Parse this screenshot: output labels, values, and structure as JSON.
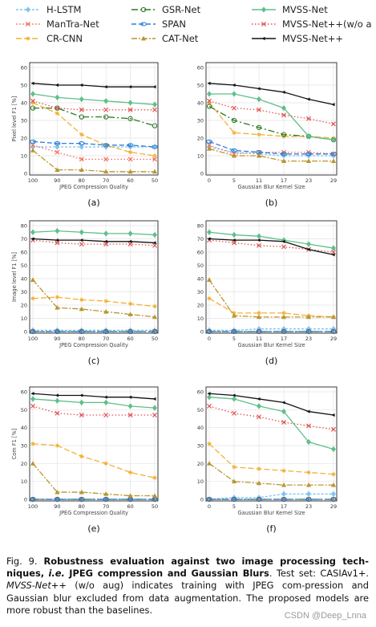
{
  "legend": [
    {
      "name": "H-LSTM",
      "color": "#7fc4ef",
      "dash": "3,2",
      "marker": "diamond"
    },
    {
      "name": "ManTra-Net",
      "color": "#f4695a",
      "dash": "1.5,2.5",
      "marker": "x"
    },
    {
      "name": "CR-CNN",
      "color": "#f2b134",
      "dash": "7,3",
      "marker": "star"
    },
    {
      "name": "GSR-Net",
      "color": "#2d7a22",
      "dash": "8,3,2,3",
      "marker": "circle"
    },
    {
      "name": "SPAN",
      "color": "#2e7fd8",
      "dash": "6,3",
      "marker": "ellipse"
    },
    {
      "name": "CAT-Net",
      "color": "#b89630",
      "dash": "7,2,2,2",
      "marker": "triangle"
    },
    {
      "name": "MVSS-Net",
      "color": "#5fbf8a",
      "dash": "",
      "marker": "diamond"
    },
    {
      "name": "MVSS-Net++(w/o aug)",
      "color": "#e05050",
      "dash": "1.5,2.5",
      "marker": "x"
    },
    {
      "name": "MVSS-Net++",
      "color": "#111111",
      "dash": "",
      "marker": "arrow"
    }
  ],
  "chart_data": [
    {
      "id": "a",
      "type": "line",
      "panel_label": "(a)",
      "xlabel": "JPEG Compression Quality",
      "ylabel": "Pixel level F1 [%]",
      "x": [
        "100",
        "90",
        "80",
        "70",
        "60",
        "50"
      ],
      "ylim": [
        0,
        60
      ],
      "yticks": [
        0,
        10,
        20,
        30,
        40,
        50,
        60
      ],
      "series": [
        {
          "name": "H-LSTM",
          "values": [
            15,
            15,
            15,
            15,
            15,
            15
          ]
        },
        {
          "name": "ManTra-Net",
          "values": [
            16,
            12,
            8,
            8,
            8,
            8
          ]
        },
        {
          "name": "CR-CNN",
          "values": [
            40,
            34,
            22,
            16,
            12,
            10
          ]
        },
        {
          "name": "GSR-Net",
          "values": [
            37,
            37,
            32,
            32,
            31,
            27
          ]
        },
        {
          "name": "SPAN",
          "values": [
            18,
            17,
            17,
            16,
            16,
            15
          ]
        },
        {
          "name": "CAT-Net",
          "values": [
            13,
            2,
            2,
            1,
            1,
            1
          ]
        },
        {
          "name": "MVSS-Net",
          "values": [
            45,
            43,
            42,
            41,
            40,
            39
          ]
        },
        {
          "name": "MVSS-Net++(w/o aug)",
          "values": [
            41,
            37,
            36,
            36,
            36,
            36
          ]
        },
        {
          "name": "MVSS-Net++",
          "values": [
            51,
            50,
            50,
            49,
            49,
            49
          ]
        }
      ]
    },
    {
      "id": "b",
      "type": "line",
      "panel_label": "(b)",
      "xlabel": "Gaussian Blur Kernel Size",
      "ylabel": "",
      "x": [
        "0",
        "5",
        "11",
        "17",
        "23",
        "29"
      ],
      "ylim": [
        0,
        60
      ],
      "yticks": [
        0,
        10,
        20,
        30,
        40,
        50,
        60
      ],
      "series": [
        {
          "name": "H-LSTM",
          "values": [
            15,
            12,
            11,
            10,
            10,
            10
          ]
        },
        {
          "name": "ManTra-Net",
          "values": [
            16,
            11,
            12,
            12,
            12,
            11
          ]
        },
        {
          "name": "CR-CNN",
          "values": [
            40,
            23,
            22,
            21,
            21,
            20
          ]
        },
        {
          "name": "GSR-Net",
          "values": [
            38,
            30,
            26,
            22,
            21,
            19
          ]
        },
        {
          "name": "SPAN",
          "values": [
            18,
            13,
            12,
            11,
            11,
            11
          ]
        },
        {
          "name": "CAT-Net",
          "values": [
            14,
            10,
            10,
            7,
            7,
            7
          ]
        },
        {
          "name": "MVSS-Net",
          "values": [
            45,
            45,
            42,
            37,
            21,
            19
          ]
        },
        {
          "name": "MVSS-Net++(w/o aug)",
          "values": [
            41,
            37,
            36,
            33,
            31,
            28
          ]
        },
        {
          "name": "MVSS-Net++",
          "values": [
            51,
            50,
            48,
            46,
            42,
            39
          ]
        }
      ]
    },
    {
      "id": "c",
      "type": "line",
      "panel_label": "(c)",
      "xlabel": "JPEG Compression Quality",
      "ylabel": "Image level F1 [%]",
      "x": [
        "100",
        "90",
        "80",
        "70",
        "60",
        "50"
      ],
      "ylim": [
        0,
        80
      ],
      "yticks": [
        0,
        10,
        20,
        30,
        40,
        50,
        60,
        70,
        80
      ],
      "series": [
        {
          "name": "H-LSTM",
          "values": [
            1,
            1,
            1,
            1,
            1,
            1
          ]
        },
        {
          "name": "ManTra-Net",
          "values": [
            0,
            0,
            0,
            0,
            0,
            0
          ]
        },
        {
          "name": "CR-CNN",
          "values": [
            25,
            26,
            24,
            23,
            21,
            19
          ]
        },
        {
          "name": "GSR-Net",
          "values": [
            0,
            0,
            0,
            0,
            0,
            0
          ]
        },
        {
          "name": "SPAN",
          "values": [
            0,
            0,
            0,
            0,
            0,
            0
          ]
        },
        {
          "name": "CAT-Net",
          "values": [
            39,
            18,
            17,
            15,
            13,
            11
          ]
        },
        {
          "name": "MVSS-Net",
          "values": [
            75,
            76,
            75,
            74,
            74,
            73
          ]
        },
        {
          "name": "MVSS-Net++(w/o aug)",
          "values": [
            69,
            67,
            66,
            66,
            66,
            65
          ]
        },
        {
          "name": "MVSS-Net++",
          "values": [
            70,
            69,
            69,
            68,
            68,
            67
          ]
        }
      ]
    },
    {
      "id": "d",
      "type": "line",
      "panel_label": "(d)",
      "xlabel": "Gaussian Blur Kernel Size",
      "ylabel": "",
      "x": [
        "0",
        "5",
        "11",
        "17",
        "23",
        "29"
      ],
      "ylim": [
        0,
        80
      ],
      "yticks": [
        0,
        10,
        20,
        30,
        40,
        50,
        60,
        70,
        80
      ],
      "series": [
        {
          "name": "H-LSTM",
          "values": [
            1,
            1,
            2,
            2,
            2,
            2
          ]
        },
        {
          "name": "ManTra-Net",
          "values": [
            0,
            0,
            0,
            0,
            0,
            0
          ]
        },
        {
          "name": "CR-CNN",
          "values": [
            25,
            14,
            14,
            14,
            12,
            11
          ]
        },
        {
          "name": "GSR-Net",
          "values": [
            0,
            0,
            0,
            0,
            0,
            0
          ]
        },
        {
          "name": "SPAN",
          "values": [
            0,
            0,
            0,
            0,
            0,
            0
          ]
        },
        {
          "name": "CAT-Net",
          "values": [
            39,
            12,
            11,
            11,
            11,
            11
          ]
        },
        {
          "name": "MVSS-Net",
          "values": [
            75,
            73,
            72,
            69,
            66,
            63
          ]
        },
        {
          "name": "MVSS-Net++(w/o aug)",
          "values": [
            69,
            67,
            65,
            64,
            62,
            60
          ]
        },
        {
          "name": "MVSS-Net++",
          "values": [
            70,
            69,
            69,
            68,
            62,
            58
          ]
        }
      ]
    },
    {
      "id": "e",
      "type": "line",
      "panel_label": "(e)",
      "xlabel": "JPEG Compression Quality",
      "ylabel": "Com F1 [%]",
      "x": [
        "100",
        "90",
        "80",
        "70",
        "60",
        "50"
      ],
      "ylim": [
        0,
        60
      ],
      "yticks": [
        0,
        10,
        20,
        30,
        40,
        50,
        60
      ],
      "series": [
        {
          "name": "H-LSTM",
          "values": [
            0,
            0,
            0,
            0,
            0,
            0
          ]
        },
        {
          "name": "ManTra-Net",
          "values": [
            0,
            0,
            0,
            0,
            0,
            0
          ]
        },
        {
          "name": "CR-CNN",
          "values": [
            31,
            30,
            24,
            20,
            15,
            12
          ]
        },
        {
          "name": "GSR-Net",
          "values": [
            0,
            0,
            0,
            0,
            0,
            0
          ]
        },
        {
          "name": "SPAN",
          "values": [
            0,
            0,
            0,
            0,
            0,
            0
          ]
        },
        {
          "name": "CAT-Net",
          "values": [
            20,
            4,
            4,
            3,
            2,
            2
          ]
        },
        {
          "name": "MVSS-Net",
          "values": [
            56,
            55,
            54,
            54,
            52,
            51
          ]
        },
        {
          "name": "MVSS-Net++(w/o aug)",
          "values": [
            52,
            48,
            47,
            47,
            47,
            47
          ]
        },
        {
          "name": "MVSS-Net++",
          "values": [
            59,
            58,
            58,
            57,
            57,
            56
          ]
        }
      ]
    },
    {
      "id": "f",
      "type": "line",
      "panel_label": "(f)",
      "xlabel": "Gaussian Blur Kernel Size",
      "ylabel": "",
      "x": [
        "0",
        "5",
        "11",
        "17",
        "23",
        "29"
      ],
      "ylim": [
        0,
        60
      ],
      "yticks": [
        0,
        10,
        20,
        30,
        40,
        50,
        60
      ],
      "series": [
        {
          "name": "H-LSTM",
          "values": [
            0,
            1,
            1,
            3,
            3,
            3
          ]
        },
        {
          "name": "ManTra-Net",
          "values": [
            0,
            0,
            0,
            0,
            0,
            0
          ]
        },
        {
          "name": "CR-CNN",
          "values": [
            31,
            18,
            17,
            16,
            15,
            14
          ]
        },
        {
          "name": "GSR-Net",
          "values": [
            0,
            0,
            0,
            0,
            0,
            0
          ]
        },
        {
          "name": "SPAN",
          "values": [
            0,
            0,
            0,
            0,
            0,
            0
          ]
        },
        {
          "name": "CAT-Net",
          "values": [
            20,
            10,
            9,
            8,
            8,
            8
          ]
        },
        {
          "name": "MVSS-Net",
          "values": [
            57,
            56,
            52,
            49,
            32,
            28
          ]
        },
        {
          "name": "MVSS-Net++(w/o aug)",
          "values": [
            52,
            48,
            46,
            43,
            41,
            39
          ]
        },
        {
          "name": "MVSS-Net++",
          "values": [
            59,
            58,
            56,
            54,
            49,
            47
          ]
        }
      ]
    }
  ],
  "caption": {
    "fig_label": "Fig. 9.",
    "bold_a": "Robustness evaluation against two image processing tech-niques,",
    "bold_ie": "i.e.",
    "bold_b": "JPEG compression and Gaussian Blurs",
    "text_a": ". Test set: CASIAv1+.",
    "model_name": "MVSS-Net++",
    "text_b": "(w/o aug) indicates training with JPEG com-pression and Gaussian blur excluded from data augmentation. The proposed models are more robust than the baselines."
  },
  "watermark": "CSDN @Deep_Lnna"
}
